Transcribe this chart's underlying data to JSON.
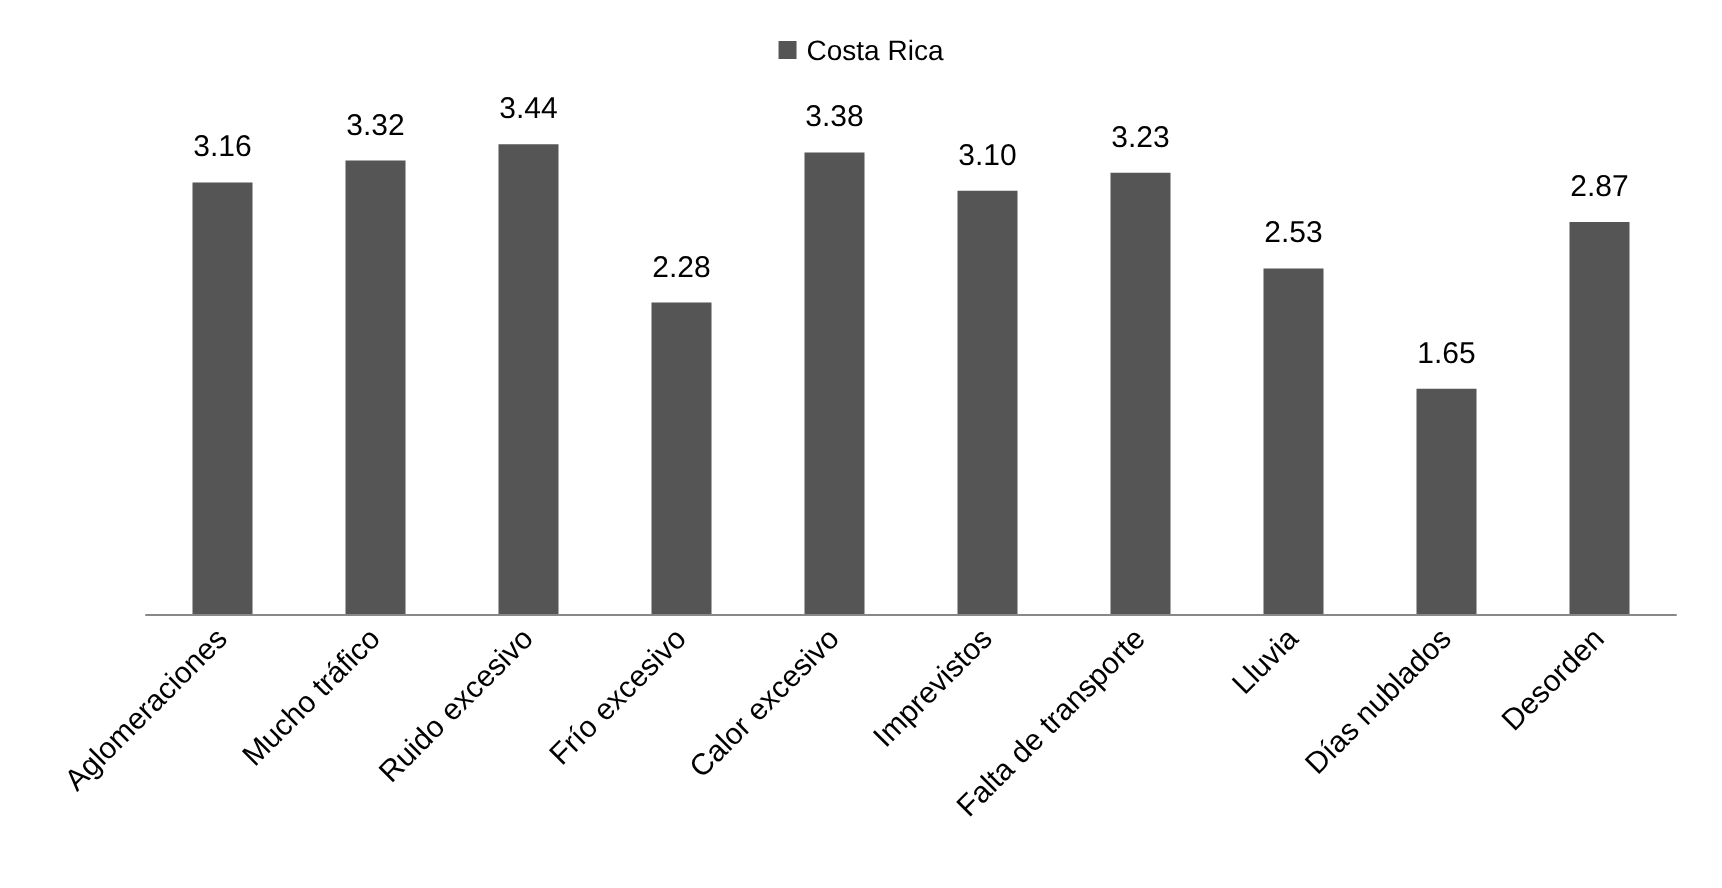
{
  "chart_data": {
    "type": "bar",
    "categories": [
      "Aglomeraciones",
      "Mucho tráfico",
      "Ruido excesivo",
      "Frío excesivo",
      "Calor excesivo",
      "Imprevistos",
      "Falta de transporte",
      "Lluvia",
      "Días nublados",
      "Desorden"
    ],
    "series": [
      {
        "name": "Costa Rica",
        "color": "#555555",
        "values": [
          3.16,
          3.32,
          3.44,
          2.28,
          3.38,
          3.1,
          3.23,
          2.53,
          1.65,
          2.87
        ],
        "value_labels": [
          "3.16",
          "3.32",
          "3.44",
          "2.28",
          "3.38",
          "3.10",
          "3.23",
          "2.53",
          "1.65",
          "2.87"
        ]
      }
    ],
    "legend": "top",
    "grid": false
  }
}
